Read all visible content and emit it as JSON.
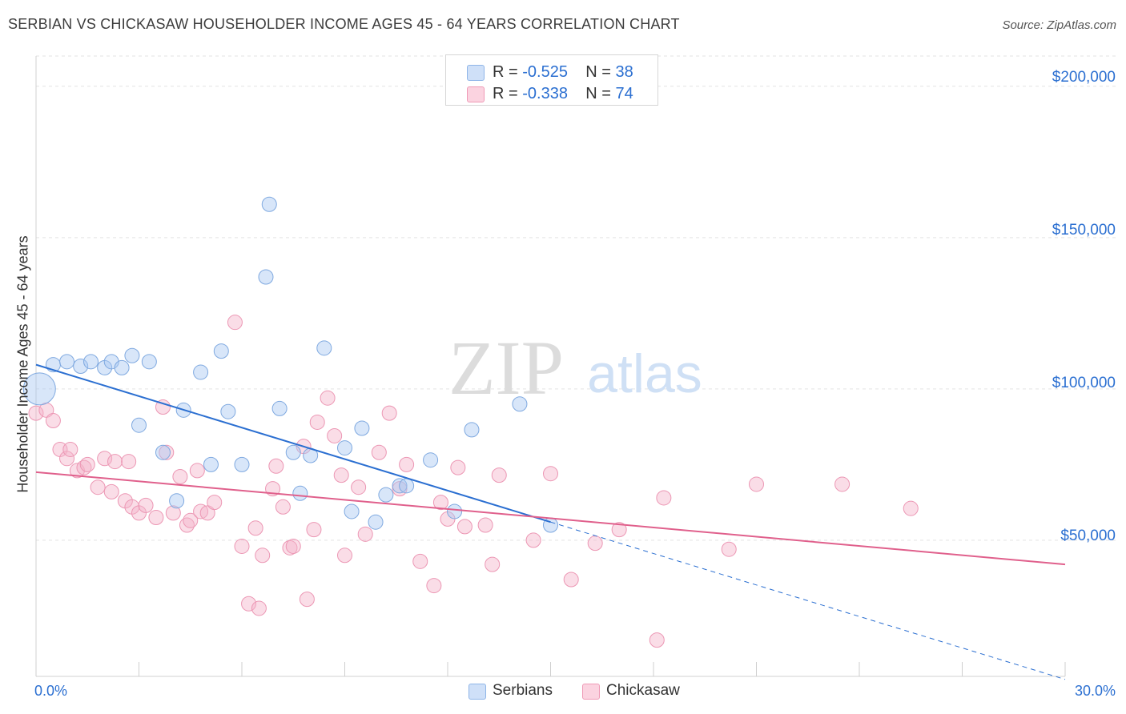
{
  "title": "SERBIAN VS CHICKASAW HOUSEHOLDER INCOME AGES 45 - 64 YEARS CORRELATION CHART",
  "source": "Source: ZipAtlas.com",
  "watermark": {
    "zip": "ZIP",
    "atlas": "atlas"
  },
  "legend": {
    "rows": [
      {
        "r_label": "R = ",
        "r_value": "-0.525",
        "n_label": "N = ",
        "n_value": "38",
        "color": "#a9c8f2"
      },
      {
        "r_label": "R = ",
        "r_value": "-0.338",
        "n_label": "N = ",
        "n_value": "74",
        "color": "#f5b3c9"
      }
    ]
  },
  "bottom_legend": {
    "serbians": "Serbians",
    "chickasaw": "Chickasaw"
  },
  "axis": {
    "xmin_label": "0.0%",
    "xmax_label": "30.0%",
    "ylabel": "Householder Income Ages 45 - 64 years",
    "yticks": [
      "$200,000",
      "$150,000",
      "$100,000",
      "$50,000"
    ]
  },
  "chart_data": {
    "type": "scatter",
    "xlabel": "",
    "ylabel": "Householder Income Ages 45 - 64 years",
    "xlim": [
      0,
      30
    ],
    "ylim": [
      5000,
      210000
    ],
    "yticks": [
      50000,
      100000,
      150000,
      200000
    ],
    "grid": true,
    "legend_position": "top-center",
    "colors": {
      "serbians": "#a9c8f2",
      "serbians_line": "#2b6fd1",
      "chickasaw": "#f5b3c9",
      "chickasaw_line": "#e0608c"
    },
    "series": [
      {
        "name": "Serbians",
        "r": -0.525,
        "n": 38,
        "trend": {
          "x0": 0,
          "y0": 108000,
          "x1": 15,
          "y1": 56000,
          "dashed_to_x": 30,
          "dashed_to_y": 4000
        },
        "points": [
          [
            0.1,
            100000
          ],
          [
            0.5,
            108000
          ],
          [
            0.9,
            109000
          ],
          [
            1.3,
            107500
          ],
          [
            1.6,
            109000
          ],
          [
            2.0,
            107000
          ],
          [
            2.2,
            109000
          ],
          [
            2.5,
            107000
          ],
          [
            2.8,
            111000
          ],
          [
            3.3,
            109000
          ],
          [
            3.0,
            88000
          ],
          [
            3.7,
            79000
          ],
          [
            4.1,
            63000
          ],
          [
            4.3,
            93000
          ],
          [
            4.8,
            105500
          ],
          [
            5.1,
            75000
          ],
          [
            5.4,
            112500
          ],
          [
            5.6,
            92500
          ],
          [
            6.0,
            75000
          ],
          [
            6.7,
            137000
          ],
          [
            6.8,
            161000
          ],
          [
            7.1,
            93500
          ],
          [
            7.5,
            79000
          ],
          [
            7.7,
            65500
          ],
          [
            8.0,
            78000
          ],
          [
            8.4,
            113500
          ],
          [
            9.0,
            80500
          ],
          [
            9.2,
            59500
          ],
          [
            9.5,
            87000
          ],
          [
            9.9,
            56000
          ],
          [
            10.2,
            65000
          ],
          [
            10.6,
            68000
          ],
          [
            10.8,
            68000
          ],
          [
            11.5,
            76500
          ],
          [
            12.2,
            59500
          ],
          [
            12.7,
            86500
          ],
          [
            14.1,
            95000
          ],
          [
            15.0,
            55000
          ]
        ]
      },
      {
        "name": "Chickasaw",
        "r": -0.338,
        "n": 74,
        "trend": {
          "x0": 0,
          "y0": 72500,
          "x1": 30,
          "y1": 42000
        },
        "points": [
          [
            0.0,
            92000
          ],
          [
            0.3,
            93000
          ],
          [
            0.5,
            89500
          ],
          [
            0.7,
            80000
          ],
          [
            0.9,
            77000
          ],
          [
            1.0,
            80000
          ],
          [
            1.2,
            73000
          ],
          [
            1.4,
            74000
          ],
          [
            1.5,
            75000
          ],
          [
            1.8,
            67500
          ],
          [
            2.0,
            77000
          ],
          [
            2.2,
            66000
          ],
          [
            2.3,
            76000
          ],
          [
            2.6,
            63000
          ],
          [
            2.7,
            76000
          ],
          [
            2.8,
            61000
          ],
          [
            3.0,
            59000
          ],
          [
            3.2,
            61500
          ],
          [
            3.5,
            57500
          ],
          [
            3.7,
            94000
          ],
          [
            3.8,
            79000
          ],
          [
            4.0,
            59000
          ],
          [
            4.2,
            71000
          ],
          [
            4.4,
            55000
          ],
          [
            4.5,
            56500
          ],
          [
            4.7,
            73000
          ],
          [
            4.8,
            59500
          ],
          [
            5.0,
            59000
          ],
          [
            5.2,
            62500
          ],
          [
            5.8,
            122000
          ],
          [
            6.0,
            48000
          ],
          [
            6.2,
            29000
          ],
          [
            6.4,
            54000
          ],
          [
            6.5,
            27500
          ],
          [
            6.6,
            45000
          ],
          [
            6.9,
            67000
          ],
          [
            7.0,
            74500
          ],
          [
            7.2,
            61000
          ],
          [
            7.4,
            47500
          ],
          [
            7.5,
            48000
          ],
          [
            7.8,
            81000
          ],
          [
            7.9,
            30500
          ],
          [
            8.1,
            53500
          ],
          [
            8.2,
            89000
          ],
          [
            8.5,
            97000
          ],
          [
            8.7,
            84500
          ],
          [
            8.9,
            71500
          ],
          [
            9.0,
            45000
          ],
          [
            9.4,
            67500
          ],
          [
            9.6,
            52000
          ],
          [
            10.0,
            79000
          ],
          [
            10.3,
            92000
          ],
          [
            10.6,
            67000
          ],
          [
            10.8,
            75000
          ],
          [
            11.2,
            43000
          ],
          [
            11.6,
            35000
          ],
          [
            11.8,
            62500
          ],
          [
            12.0,
            57000
          ],
          [
            12.3,
            74000
          ],
          [
            12.5,
            54500
          ],
          [
            13.1,
            55000
          ],
          [
            13.3,
            42000
          ],
          [
            13.5,
            71500
          ],
          [
            14.5,
            50000
          ],
          [
            15.0,
            72000
          ],
          [
            15.6,
            37000
          ],
          [
            16.3,
            49000
          ],
          [
            17.0,
            53500
          ],
          [
            18.1,
            17000
          ],
          [
            18.3,
            64000
          ],
          [
            20.2,
            47000
          ],
          [
            21.0,
            68500
          ],
          [
            23.5,
            68500
          ],
          [
            25.5,
            60500
          ]
        ]
      }
    ]
  }
}
